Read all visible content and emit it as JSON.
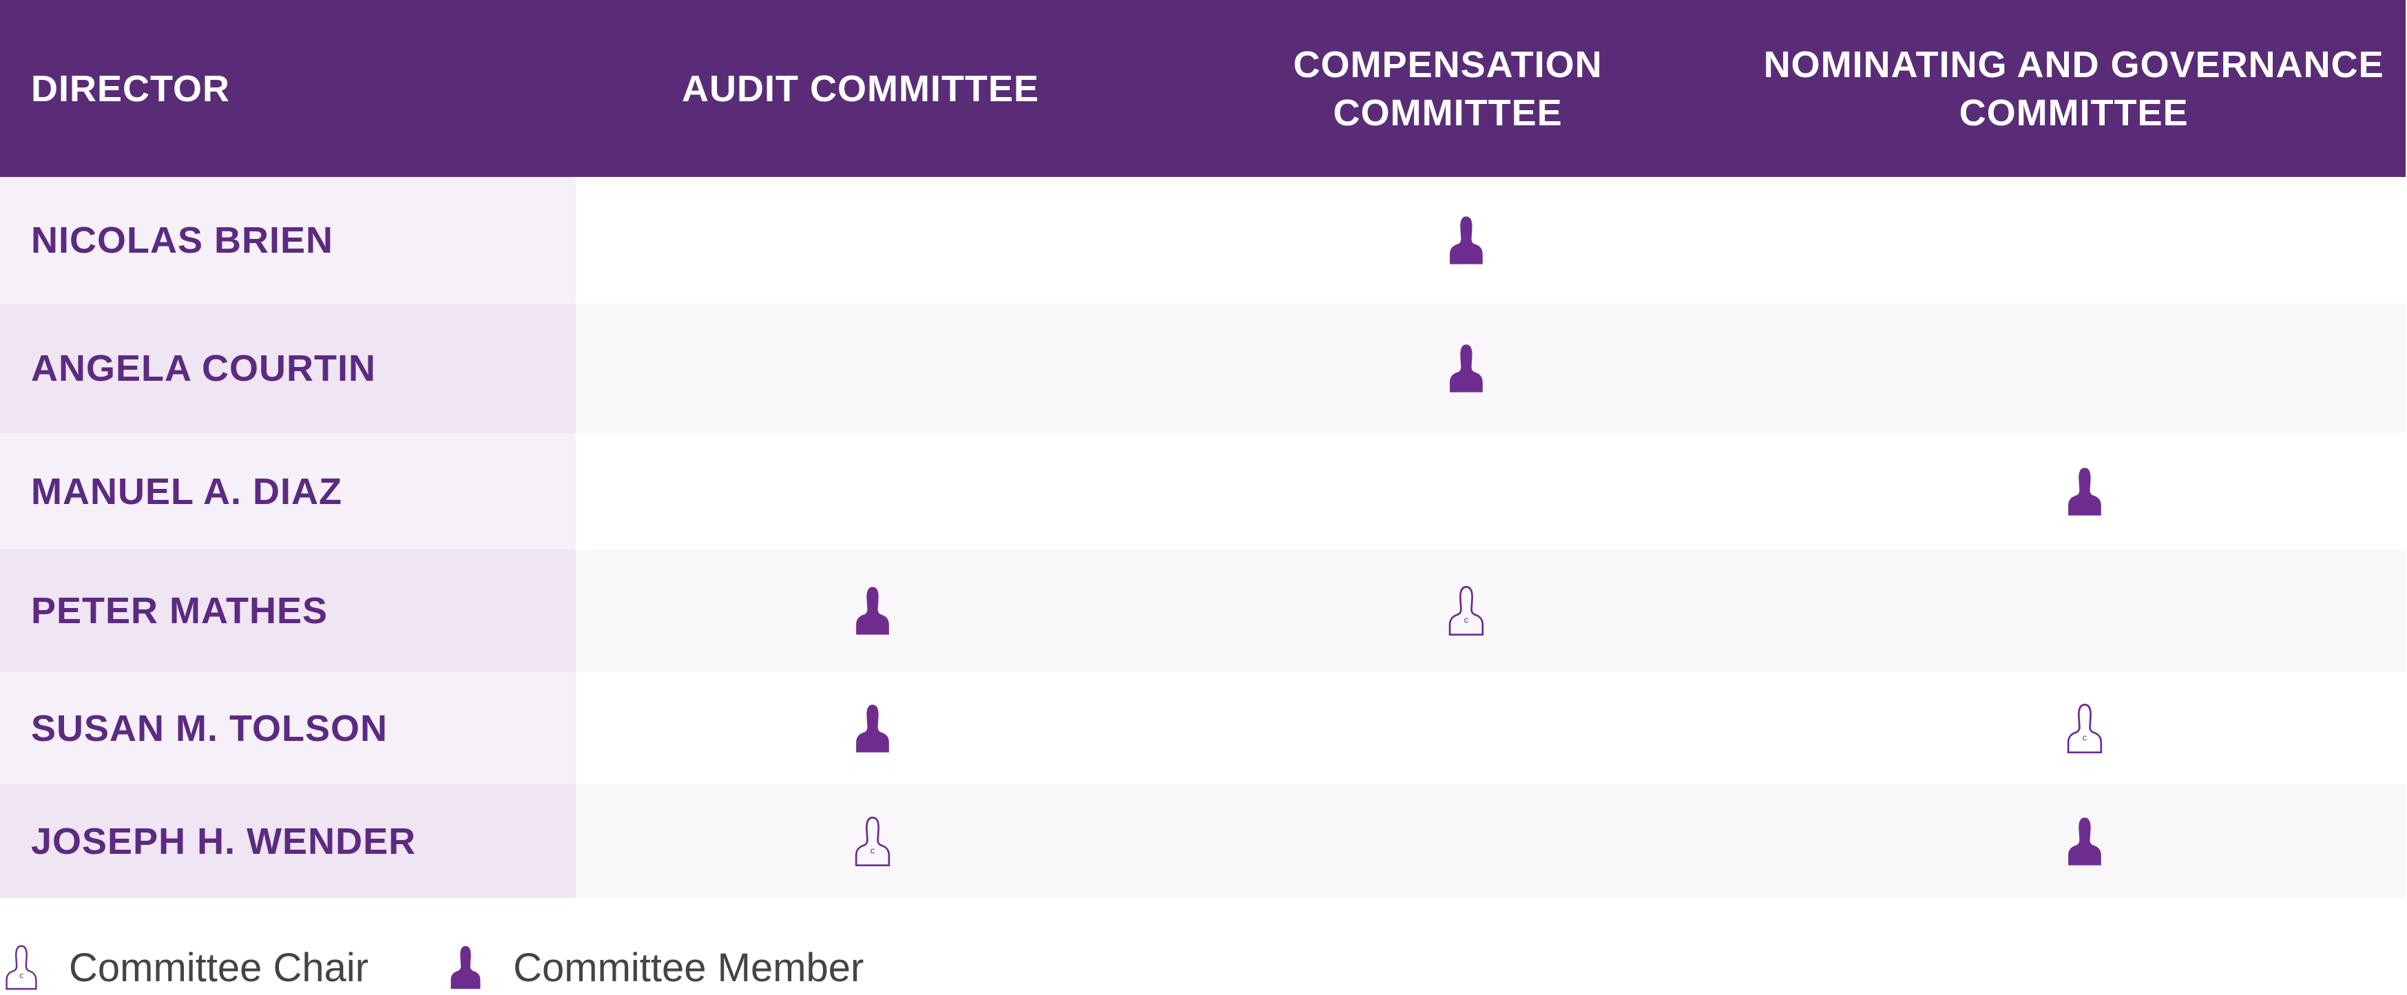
{
  "header": {
    "director": "DIRECTOR",
    "audit": "AUDIT COMMITTEE",
    "compensation": "COMPENSATION COMMITTEE",
    "nominating": "NOMINATING AND GOVERNANCE COMMITTEE"
  },
  "colors": {
    "header_bg": "#5a2c78",
    "text": "#5c2a82",
    "icon": "#6f2c8f"
  },
  "rows": [
    {
      "name": "NICOLAS BRIEN",
      "audit": "",
      "compensation": "member",
      "nominating": ""
    },
    {
      "name": "ANGELA COURTIN",
      "audit": "",
      "compensation": "member",
      "nominating": ""
    },
    {
      "name": "MANUEL A. DIAZ",
      "audit": "",
      "compensation": "",
      "nominating": "member"
    },
    {
      "name": "PETER MATHES",
      "audit": "member",
      "compensation": "chair",
      "nominating": ""
    },
    {
      "name": "SUSAN M. TOLSON",
      "audit": "member",
      "compensation": "",
      "nominating": "chair"
    },
    {
      "name": "JOSEPH H. WENDER",
      "audit": "chair",
      "compensation": "",
      "nominating": "member"
    }
  ],
  "legend": {
    "chair": "Committee Chair",
    "member": "Committee Member"
  }
}
